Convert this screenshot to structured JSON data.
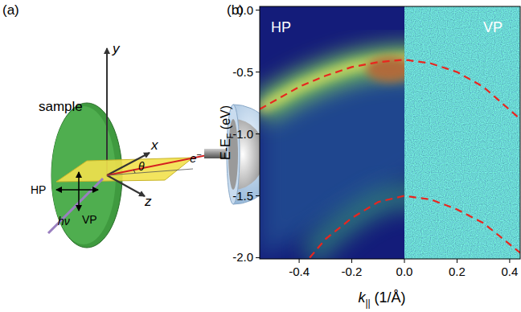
{
  "panel_a": {
    "label": "(a)",
    "axes": {
      "y": "y",
      "x": "x",
      "z": "z"
    },
    "sample": "sample",
    "angle": "θ",
    "electron": {
      "text": "e",
      "superscript": "−"
    },
    "polarizations": [
      "HP",
      "VP"
    ],
    "photon": "hν"
  },
  "chart_data": {
    "type": "line",
    "panel_label": "(b)",
    "regions": [
      "HP",
      "VP"
    ],
    "region_boundary": 0,
    "xlabel": {
      "text": "k",
      "subscript": "||",
      "suffix": " (1/Å)"
    },
    "ylabel": {
      "text": "E-E",
      "subscript": "F",
      "suffix": " (eV)"
    },
    "xlim": [
      -0.55,
      0.44
    ],
    "ylim": [
      -2.01,
      0.03
    ],
    "xticks": [
      -0.4,
      -0.2,
      {
        "value": 0,
        "label": "0.0"
      },
      0.2,
      0.4
    ],
    "yticks": [
      {
        "value": 0,
        "label": "0.0"
      },
      -0.5,
      {
        "value": -1,
        "label": "-1.0"
      },
      -1.5,
      {
        "value": -2,
        "label": "-2.0"
      }
    ],
    "series": [
      {
        "x": [
          -0.55,
          -0.4,
          -0.3,
          -0.2,
          -0.1,
          0,
          0.1,
          0.2,
          0.3,
          0.44
        ],
        "values": [
          -0.8,
          -0.62,
          -0.53,
          -0.46,
          -0.42,
          -0.4,
          -0.43,
          -0.5,
          -0.62,
          -0.88
        ],
        "color": "#e8261f",
        "line_style": "dashed"
      },
      {
        "x": [
          -0.36,
          -0.3,
          -0.2,
          -0.1,
          0,
          0.1,
          0.2,
          0.3,
          0.44
        ],
        "values": [
          -2.0,
          -1.85,
          -1.68,
          -1.55,
          -1.5,
          -1.53,
          -1.61,
          -1.72,
          -1.96
        ],
        "color": "#e8261f",
        "line_style": "dashed"
      }
    ]
  }
}
